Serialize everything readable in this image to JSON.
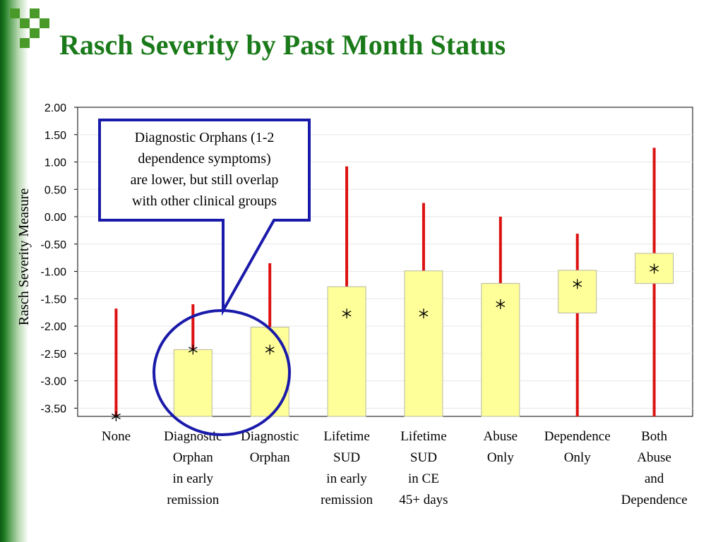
{
  "slide": {
    "title": "Rasch Severity by Past Month Status",
    "accent_color": "#1a7a1a"
  },
  "chart_data": {
    "type": "box",
    "ylabel": "Rasch Severity Measure",
    "ylim": [
      -3.65,
      2.0
    ],
    "yticks": [
      "2.00",
      "1.50",
      "1.00",
      "0.50",
      "0.00",
      "-0.50",
      "-1.00",
      "-1.50",
      "-2.00",
      "-2.50",
      "-3.00",
      "-3.50"
    ],
    "grid": true,
    "box_color": "#ffff99",
    "whisker_color": "#dd1111",
    "categories": [
      {
        "label": [
          "None"
        ],
        "mean": -3.65,
        "box_low": null,
        "box_high": null,
        "whisker_low": -3.65,
        "whisker_high": -1.68
      },
      {
        "label": [
          "Diagnostic",
          "Orphan",
          "in early",
          "remission"
        ],
        "mean": -2.43,
        "box_low": -3.65,
        "box_high": -2.43,
        "whisker_low": -3.65,
        "whisker_high": -1.6
      },
      {
        "label": [
          "Diagnostic",
          "Orphan"
        ],
        "mean": -2.43,
        "box_low": -3.65,
        "box_high": -2.02,
        "whisker_low": -3.65,
        "whisker_high": -0.85
      },
      {
        "label": [
          "Lifetime",
          "SUD",
          "in early",
          "remission"
        ],
        "mean": -1.77,
        "box_low": -3.65,
        "box_high": -1.28,
        "whisker_low": -3.65,
        "whisker_high": 0.92
      },
      {
        "label": [
          "Lifetime",
          "SUD",
          "in CE",
          "45+ days"
        ],
        "mean": -1.77,
        "box_low": -3.65,
        "box_high": -0.99,
        "whisker_low": -3.65,
        "whisker_high": 0.25
      },
      {
        "label": [
          "Abuse",
          "Only"
        ],
        "mean": -1.6,
        "box_low": -3.65,
        "box_high": -1.22,
        "whisker_low": -3.65,
        "whisker_high": 0.0
      },
      {
        "label": [
          "Dependence",
          "Only"
        ],
        "mean": -1.23,
        "box_low": -1.76,
        "box_high": -0.98,
        "whisker_low": -3.65,
        "whisker_high": -0.31
      },
      {
        "label": [
          "Both",
          "Abuse",
          "and",
          "Dependence"
        ],
        "mean": -0.95,
        "box_low": -1.22,
        "box_high": -0.67,
        "whisker_low": -3.65,
        "whisker_high": 1.26
      }
    ],
    "annotation": {
      "lines": [
        "Diagnostic Orphans (1-2",
        "dependence symptoms)",
        "are lower, but still overlap",
        "with other clinical groups"
      ],
      "border_color": "#1a1aaa"
    }
  }
}
